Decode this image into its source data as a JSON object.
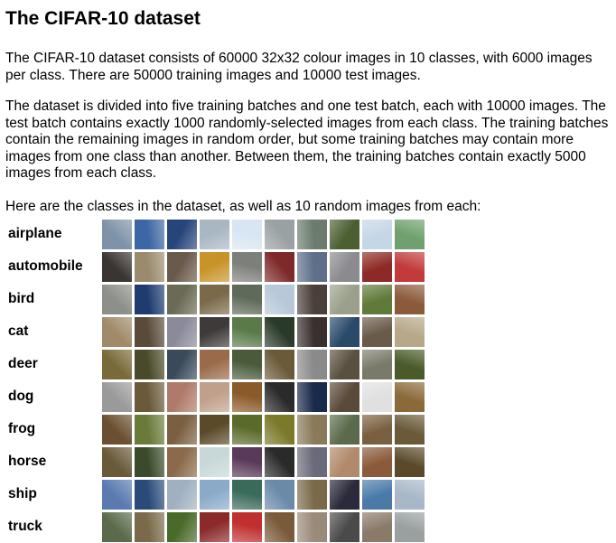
{
  "title": "The CIFAR-10 dataset",
  "paragraphs": [
    "The CIFAR-10 dataset consists of 60000 32x32 colour images in 10 classes, with 6000 images per class. There are 50000 training images and 10000 test images.",
    "The dataset is divided into five training batches and one test batch, each with 10000 images. The test batch contains exactly 1000 randomly-selected images from each class. The training batches contain the remaining images in random order, but some training batches may contain more images from one class than another. Between them, the training batches contain exactly 5000 images from each class."
  ],
  "lead": "Here are the classes in the dataset, as well as 10 random images from each:",
  "classes": [
    {
      "label": "airplane",
      "colors": [
        "#7f93a8",
        "#3d66a4",
        "#27457b",
        "#a9b7c3",
        "#d7e6f2",
        "#9aa1a3",
        "#6b7c6e",
        "#4c5f33",
        "#c5d6e6",
        "#6fa06e"
      ]
    },
    {
      "label": "automobile",
      "colors": [
        "#3a3532",
        "#9b8b6e",
        "#6a5a4c",
        "#c8942a",
        "#7d7f7a",
        "#7e2a2a",
        "#5f6f8a",
        "#8b8b8f",
        "#8e2a25",
        "#c23a3a"
      ]
    },
    {
      "label": "bird",
      "colors": [
        "#8c8f8a",
        "#1f3b70",
        "#6a6a55",
        "#7a6a4a",
        "#5f6a5a",
        "#b8c8d8",
        "#4a3f3a",
        "#9aa08a",
        "#5f7a3a",
        "#8b5a3a"
      ]
    },
    {
      "label": "cat",
      "colors": [
        "#a08a6a",
        "#5a4a3a",
        "#8a8a9a",
        "#3f3a3a",
        "#5a7a4a",
        "#2a3a2a",
        "#3a3030",
        "#2a4a6a",
        "#6a5a4a",
        "#b7a88a"
      ]
    },
    {
      "label": "deer",
      "colors": [
        "#7a6a3a",
        "#4a4a2a",
        "#3a4a5a",
        "#9a6a4a",
        "#4a5a3a",
        "#6a5a3a",
        "#8a8a8a",
        "#5a5040",
        "#7a7a6a",
        "#4a5a2a"
      ]
    },
    {
      "label": "dog",
      "colors": [
        "#9a9a9a",
        "#6a5a3a",
        "#b07a6a",
        "#c0a08a",
        "#8a5a2a",
        "#2a2a2a",
        "#1a2a4a",
        "#5a4a3a",
        "#e0e0e0",
        "#8a6a3a"
      ]
    },
    {
      "label": "frog",
      "colors": [
        "#6a5030",
        "#6a7a3a",
        "#7a6040",
        "#5a4a2a",
        "#5a6a2a",
        "#7a7a2a",
        "#8a7a5a",
        "#5a6a4a",
        "#7a6040",
        "#6a5a3a"
      ]
    },
    {
      "label": "horse",
      "colors": [
        "#6a5a3a",
        "#3a4a2a",
        "#8a6a4a",
        "#c8d8d8",
        "#5a3a5a",
        "#2a2a2a",
        "#6a6a7a",
        "#b08a6a",
        "#8a5a3a",
        "#5a4a2a"
      ]
    },
    {
      "label": "ship",
      "colors": [
        "#5a7ab0",
        "#2a4a7a",
        "#a0b0c0",
        "#8aaac8",
        "#3a6a5a",
        "#6a8aa8",
        "#7a6a4a",
        "#2a2a3a",
        "#4a7aa8",
        "#a8b8c8"
      ]
    },
    {
      "label": "truck",
      "colors": [
        "#5a6a4a",
        "#7a6a4a",
        "#4a6a2a",
        "#8a2a2a",
        "#c03030",
        "#7a5a3a",
        "#9a8a7a",
        "#4a4a4a",
        "#8a7a6a",
        "#9aa0a0"
      ]
    }
  ]
}
